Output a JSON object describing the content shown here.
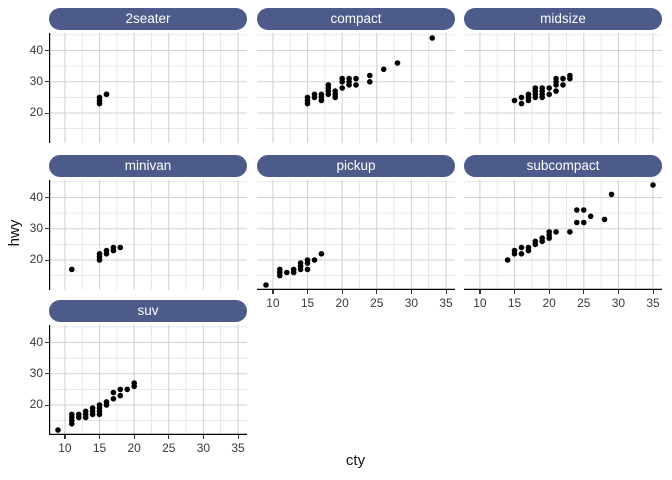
{
  "chart_data": {
    "type": "scatter",
    "title": "",
    "xlabel": "cty",
    "ylabel": "hwy",
    "legend": "none",
    "grid": "major+minor",
    "xlim": [
      7.7,
      36.3
    ],
    "ylim": [
      10.4,
      45.6
    ],
    "x_ticks": [
      10,
      15,
      20,
      25,
      30,
      35
    ],
    "y_ticks": [
      20,
      30,
      40
    ],
    "x_minor_ticks": [
      12.5,
      17.5,
      22.5,
      27.5,
      32.5
    ],
    "y_minor_ticks": [
      15,
      25,
      35,
      45
    ],
    "facet_variable": "class",
    "facets": [
      {
        "label": "2seater",
        "points": [
          [
            15,
            23
          ],
          [
            15,
            24
          ],
          [
            15,
            25
          ],
          [
            16,
            26
          ],
          [
            16,
            26
          ]
        ]
      },
      {
        "label": "compact",
        "points": [
          [
            15,
            23
          ],
          [
            15,
            24
          ],
          [
            15,
            25
          ],
          [
            16,
            25
          ],
          [
            16,
            26
          ],
          [
            17,
            24
          ],
          [
            17,
            25
          ],
          [
            17,
            26
          ],
          [
            18,
            26
          ],
          [
            18,
            27
          ],
          [
            18,
            28
          ],
          [
            18,
            29
          ],
          [
            19,
            25
          ],
          [
            19,
            26
          ],
          [
            19,
            27
          ],
          [
            20,
            28
          ],
          [
            20,
            30
          ],
          [
            20,
            31
          ],
          [
            21,
            29
          ],
          [
            21,
            30
          ],
          [
            21,
            31
          ],
          [
            22,
            29
          ],
          [
            22,
            31
          ],
          [
            24,
            30
          ],
          [
            24,
            32
          ],
          [
            26,
            34
          ],
          [
            28,
            36
          ],
          [
            33,
            44
          ]
        ]
      },
      {
        "label": "midsize",
        "points": [
          [
            15,
            24
          ],
          [
            16,
            23
          ],
          [
            16,
            25
          ],
          [
            17,
            24
          ],
          [
            17,
            25
          ],
          [
            17,
            26
          ],
          [
            18,
            25
          ],
          [
            18,
            26
          ],
          [
            18,
            27
          ],
          [
            18,
            28
          ],
          [
            19,
            25
          ],
          [
            19,
            26
          ],
          [
            19,
            27
          ],
          [
            19,
            28
          ],
          [
            20,
            26
          ],
          [
            20,
            28
          ],
          [
            21,
            27
          ],
          [
            21,
            29
          ],
          [
            21,
            30
          ],
          [
            21,
            31
          ],
          [
            22,
            29
          ],
          [
            22,
            31
          ],
          [
            23,
            31
          ],
          [
            23,
            32
          ]
        ]
      },
      {
        "label": "minivan",
        "points": [
          [
            11,
            17
          ],
          [
            15,
            20
          ],
          [
            15,
            21
          ],
          [
            15,
            22
          ],
          [
            16,
            22
          ],
          [
            16,
            23
          ],
          [
            17,
            23
          ],
          [
            17,
            24
          ],
          [
            18,
            24
          ]
        ]
      },
      {
        "label": "pickup",
        "points": [
          [
            9,
            12
          ],
          [
            11,
            15
          ],
          [
            11,
            16
          ],
          [
            11,
            17
          ],
          [
            12,
            16
          ],
          [
            13,
            16
          ],
          [
            13,
            17
          ],
          [
            14,
            17
          ],
          [
            14,
            18
          ],
          [
            14,
            19
          ],
          [
            15,
            17
          ],
          [
            15,
            19
          ],
          [
            15,
            20
          ],
          [
            16,
            20
          ],
          [
            17,
            22
          ]
        ]
      },
      {
        "label": "subcompact",
        "points": [
          [
            14,
            20
          ],
          [
            15,
            22
          ],
          [
            15,
            23
          ],
          [
            16,
            22
          ],
          [
            16,
            24
          ],
          [
            17,
            23
          ],
          [
            17,
            24
          ],
          [
            18,
            25
          ],
          [
            18,
            26
          ],
          [
            19,
            26
          ],
          [
            19,
            27
          ],
          [
            20,
            27
          ],
          [
            20,
            28
          ],
          [
            20,
            29
          ],
          [
            21,
            29
          ],
          [
            23,
            29
          ],
          [
            24,
            32
          ],
          [
            25,
            32
          ],
          [
            24,
            36
          ],
          [
            25,
            36
          ],
          [
            26,
            34
          ],
          [
            28,
            33
          ],
          [
            29,
            41
          ],
          [
            35,
            44
          ]
        ]
      },
      {
        "label": "suv",
        "points": [
          [
            9,
            12
          ],
          [
            11,
            14
          ],
          [
            11,
            15
          ],
          [
            11,
            16
          ],
          [
            11,
            17
          ],
          [
            12,
            16
          ],
          [
            12,
            17
          ],
          [
            13,
            16
          ],
          [
            13,
            17
          ],
          [
            13,
            18
          ],
          [
            14,
            17
          ],
          [
            14,
            18
          ],
          [
            14,
            19
          ],
          [
            15,
            17
          ],
          [
            15,
            18
          ],
          [
            15,
            19
          ],
          [
            15,
            20
          ],
          [
            16,
            20
          ],
          [
            16,
            21
          ],
          [
            17,
            22
          ],
          [
            17,
            24
          ],
          [
            18,
            23
          ],
          [
            18,
            25
          ],
          [
            19,
            25
          ],
          [
            20,
            26
          ],
          [
            20,
            27
          ]
        ]
      }
    ]
  },
  "style": {
    "strip_fill": "#4c5b8a",
    "strip_text_color": "#ffffff",
    "grid_major_color": "#d2d2d2",
    "grid_minor_color": "#e2e2e2",
    "axis_line_color": "#000000",
    "tick_color": "#333333",
    "tick_label_color": "#3a3a3a",
    "point_color": "#000000",
    "background": "#ffffff"
  }
}
